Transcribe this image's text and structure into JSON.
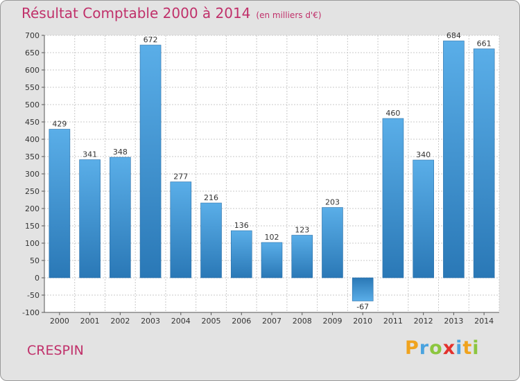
{
  "header": {
    "title": "Résultat Comptable 2000 à 2014",
    "subtitle": "(en milliers d'€)"
  },
  "footer": {
    "commune": "CRESPIN",
    "logo_text": "Proxiti",
    "logo_colors": [
      "#f0a31e",
      "#4aa3df",
      "#8cc63f",
      "#e3312d",
      "#4aa3df",
      "#f0a31e",
      "#8cc63f"
    ]
  },
  "colors": {
    "bar_light": "#5aaee8",
    "bar_dark": "#2a78b6",
    "title": "#c0306a",
    "plot_bg": "#ffffff",
    "grid": "#c8c8c8"
  },
  "chart_data": {
    "type": "bar",
    "categories": [
      "2000",
      "2001",
      "2002",
      "2003",
      "2004",
      "2005",
      "2006",
      "2007",
      "2008",
      "2009",
      "2010",
      "2011",
      "2012",
      "2013",
      "2014"
    ],
    "values": [
      429,
      341,
      348,
      672,
      277,
      216,
      136,
      102,
      123,
      203,
      -67,
      460,
      340,
      684,
      661
    ],
    "data_labels": [
      "429",
      "341",
      "348",
      "672",
      "277",
      "216",
      "136",
      "102",
      "123",
      "203",
      "-67",
      "460",
      "340",
      "684",
      "661"
    ],
    "ylim": [
      -100,
      700
    ],
    "yticks": [
      -100,
      -50,
      0,
      50,
      100,
      150,
      200,
      250,
      300,
      350,
      400,
      450,
      500,
      550,
      600,
      650,
      700
    ],
    "grid": true,
    "legend": "none"
  }
}
